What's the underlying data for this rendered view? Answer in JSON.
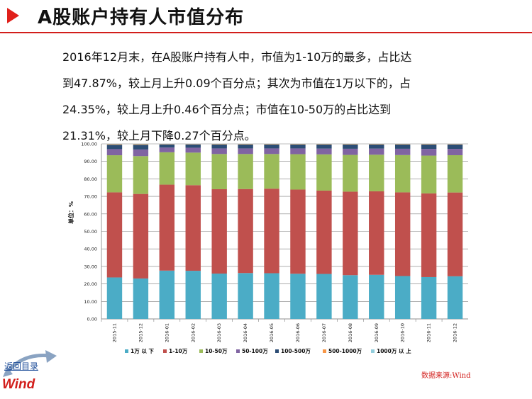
{
  "header": {
    "title": "A股账户持有人市值分布"
  },
  "paragraph": {
    "lines": [
      "2016年12月末，在A股账户持有人中，市值为1-10万的最多，占比达",
      "到47.87%，较上月上升0.09个百分点；其次为市值在1万以下的，占",
      "24.35%，较上月上升0.46个百分点；市值在10-50万的占比达到",
      "21.31%，较上月下降0.27个百分点。"
    ]
  },
  "chart_data": {
    "type": "bar",
    "stacked": true,
    "ylabel": "单位：%",
    "xlabel": "",
    "ylim": [
      0,
      100
    ],
    "yticks": [
      "0.00",
      "10.00",
      "20.00",
      "30.00",
      "40.00",
      "50.00",
      "60.00",
      "70.00",
      "80.00",
      "90.00",
      "100.00"
    ],
    "grid": true,
    "legend_position": "bottom",
    "categories": [
      "2015-11",
      "2015-12",
      "2016-01",
      "2016-02",
      "2016-03",
      "2016-04",
      "2016-05",
      "2016-06",
      "2016-07",
      "2016-08",
      "2016-09",
      "2016-10",
      "2016-11",
      "2016-12"
    ],
    "series": [
      {
        "name": "1万 以 下",
        "color": "#4bacc6",
        "values": [
          23.7,
          23.1,
          27.6,
          27.5,
          25.9,
          26.2,
          26.1,
          25.8,
          25.7,
          25.0,
          25.2,
          24.5,
          23.9,
          24.35
        ]
      },
      {
        "name": "1-10万",
        "color": "#c0504d",
        "values": [
          48.6,
          48.3,
          49.1,
          48.9,
          48.2,
          48.0,
          48.3,
          48.1,
          47.6,
          47.7,
          47.7,
          47.8,
          47.8,
          47.87
        ]
      },
      {
        "name": "10-50万",
        "color": "#9bbb59",
        "values": [
          21.2,
          21.6,
          18.5,
          18.6,
          20.1,
          20.0,
          19.8,
          20.2,
          20.7,
          21.0,
          20.9,
          21.3,
          21.6,
          21.31
        ]
      },
      {
        "name": "50-100万",
        "color": "#8064a2",
        "values": [
          3.5,
          3.8,
          2.7,
          2.8,
          3.2,
          3.2,
          3.2,
          3.3,
          3.3,
          3.5,
          3.5,
          3.6,
          3.8,
          3.6
        ]
      },
      {
        "name": "100-500万",
        "color": "#2c4d75",
        "values": [
          2.5,
          2.7,
          1.8,
          1.9,
          2.2,
          2.2,
          2.2,
          2.2,
          2.3,
          2.4,
          2.3,
          2.4,
          2.5,
          2.5
        ]
      },
      {
        "name": "500-1000万",
        "color": "#f79646",
        "values": [
          0.3,
          0.3,
          0.2,
          0.2,
          0.25,
          0.25,
          0.25,
          0.25,
          0.25,
          0.25,
          0.25,
          0.25,
          0.25,
          0.22
        ]
      },
      {
        "name": "1000万 以 上",
        "color": "#92cddc",
        "values": [
          0.2,
          0.2,
          0.1,
          0.1,
          0.15,
          0.15,
          0.15,
          0.15,
          0.15,
          0.15,
          0.15,
          0.15,
          0.15,
          0.15
        ]
      }
    ]
  },
  "footer": {
    "source": "数据来源:Wind",
    "back_link": "返回目录",
    "logo": "Wind"
  }
}
